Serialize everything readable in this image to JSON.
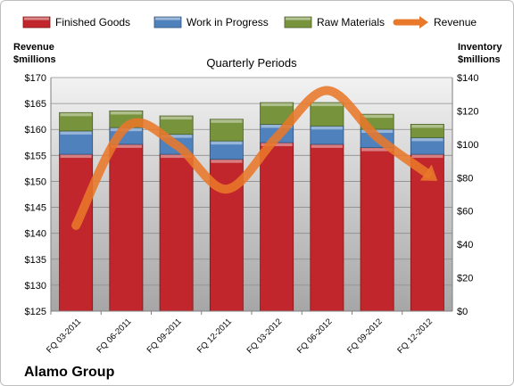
{
  "chart_data": {
    "type": "bar",
    "stacked": true,
    "company": "Alamo Group",
    "subtitle": "Quarterly Periods",
    "left_axis_title": [
      "Revenue",
      "$millions"
    ],
    "right_axis_title": [
      "Inventory",
      "$millions"
    ],
    "categories": [
      "FQ 03-2011",
      "FQ 06-2011",
      "FQ 09-2011",
      "FQ 12-2011",
      "FQ 03-2012",
      "FQ 06-2012",
      "FQ 09-2012",
      "FQ 12-2012"
    ],
    "left_axis": {
      "min": 125,
      "max": 170,
      "step": 5,
      "prefix": "$"
    },
    "right_axis": {
      "min": 0,
      "max": 140,
      "step": 20,
      "prefix": "$"
    },
    "grid": true,
    "legend_position": "top",
    "series": [
      {
        "name": "Finished Goods",
        "axis": "right",
        "color": "#c0262b",
        "values": [
          94,
          100,
          94,
          91,
          101,
          100,
          98,
          94
        ]
      },
      {
        "name": "Work in Progress",
        "axis": "right",
        "color": "#4f81bd",
        "values": [
          14,
          10,
          12,
          11,
          11,
          11,
          11,
          10
        ]
      },
      {
        "name": "Raw Materials",
        "axis": "right",
        "color": "#77933c",
        "values": [
          11,
          10,
          11,
          13,
          13,
          14,
          9,
          8
        ]
      },
      {
        "name": "Revenue",
        "axis": "left",
        "type": "line",
        "color": "#e8782a",
        "values": [
          141.5,
          160.5,
          157,
          148.5,
          158.5,
          167.5,
          158.5,
          151.5
        ]
      }
    ]
  }
}
